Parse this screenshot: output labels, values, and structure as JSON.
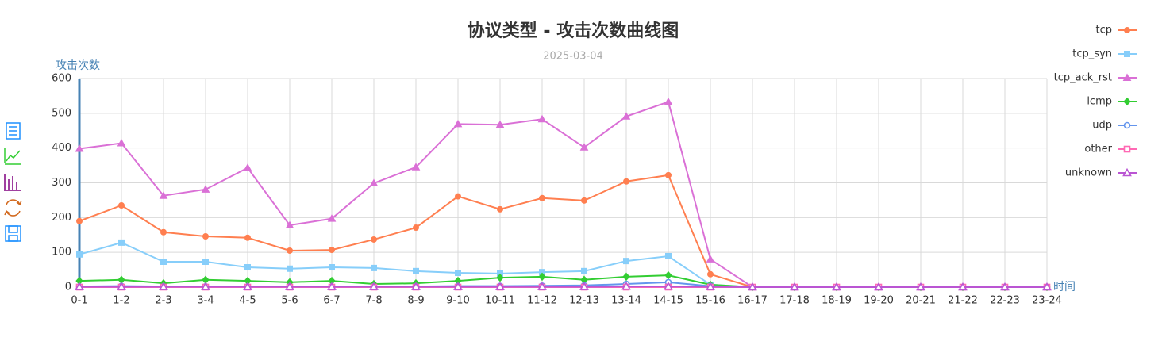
{
  "chart_data": {
    "type": "line",
    "title": "协议类型 - 攻击次数曲线图",
    "subtitle": "2025-03-04",
    "y_label": "攻击次数",
    "x_label": "时间",
    "categories": [
      "0-1",
      "1-2",
      "2-3",
      "3-4",
      "4-5",
      "5-6",
      "6-7",
      "7-8",
      "8-9",
      "9-10",
      "10-11",
      "11-12",
      "12-13",
      "13-14",
      "14-15",
      "15-16",
      "16-17",
      "17-18",
      "18-19",
      "19-20",
      "20-21",
      "21-22",
      "22-23",
      "23-24"
    ],
    "ylim": [
      0,
      600
    ],
    "yticks": [
      0,
      100,
      200,
      300,
      400,
      500,
      600
    ],
    "grid": true,
    "legend": "right",
    "series": [
      {
        "name": "tcp",
        "color": "#ff7f50",
        "symbol": "circle",
        "values": [
          190,
          235,
          158,
          146,
          142,
          105,
          107,
          137,
          171,
          261,
          224,
          256,
          249,
          304,
          322,
          37,
          0,
          0,
          0,
          0,
          0,
          0,
          0,
          0
        ]
      },
      {
        "name": "tcp_syn",
        "color": "#87cefa",
        "symbol": "rect",
        "values": [
          94,
          128,
          73,
          73,
          57,
          53,
          57,
          55,
          46,
          41,
          39,
          43,
          46,
          75,
          89,
          7,
          0,
          0,
          0,
          0,
          0,
          0,
          0,
          0
        ]
      },
      {
        "name": "tcp_ack_rst",
        "color": "#da70d6",
        "symbol": "triangle",
        "values": [
          398,
          414,
          263,
          281,
          343,
          178,
          197,
          299,
          345,
          469,
          467,
          483,
          402,
          491,
          533,
          80,
          0,
          0,
          0,
          0,
          0,
          0,
          0,
          0
        ]
      },
      {
        "name": "icmp",
        "color": "#32cd32",
        "symbol": "diamond",
        "values": [
          18,
          21,
          11,
          21,
          18,
          14,
          18,
          9,
          11,
          18,
          27,
          30,
          21,
          30,
          34,
          7,
          0,
          0,
          0,
          0,
          0,
          0,
          0,
          0
        ]
      },
      {
        "name": "udp",
        "color": "#6495ed",
        "symbol": "emptyCircle",
        "values": [
          2,
          3,
          2,
          2,
          2,
          2,
          2,
          2,
          2,
          3,
          3,
          4,
          5,
          9,
          14,
          3,
          0,
          0,
          0,
          0,
          0,
          0,
          0,
          0
        ]
      },
      {
        "name": "other",
        "color": "#ff69b4",
        "symbol": "emptyRect",
        "values": [
          0,
          0,
          0,
          0,
          0,
          0,
          0,
          0,
          0,
          0,
          0,
          0,
          0,
          0,
          0,
          0,
          0,
          0,
          0,
          0,
          0,
          0,
          0,
          0
        ]
      },
      {
        "name": "unknown",
        "color": "#ba55d3",
        "symbol": "emptyTriangle",
        "values": [
          1,
          1,
          1,
          1,
          1,
          1,
          1,
          1,
          1,
          1,
          1,
          1,
          1,
          2,
          2,
          1,
          0,
          0,
          0,
          0,
          0,
          0,
          0,
          0
        ]
      }
    ]
  }
}
